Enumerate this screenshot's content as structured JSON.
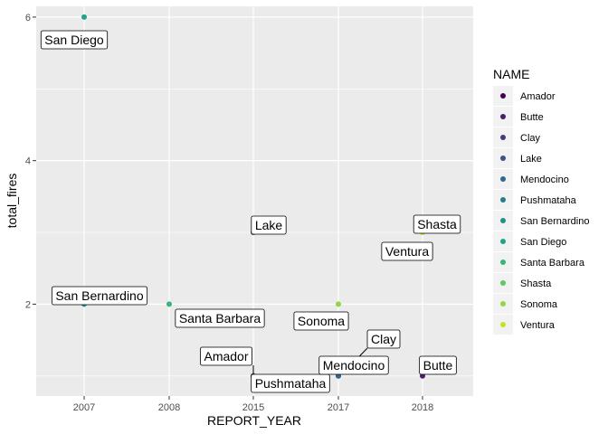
{
  "chart_data": {
    "type": "scatter",
    "title": "",
    "xlabel": "REPORT_YEAR",
    "ylabel": "total_fires",
    "x_ticks": [
      2007,
      2008,
      2015,
      2017,
      2018
    ],
    "y_ticks": [
      2,
      4,
      6
    ],
    "ylim": [
      0.72,
      6.15
    ],
    "grid": true,
    "legend": {
      "title": "NAME",
      "placement": "right",
      "entries": [
        {
          "name": "Amador",
          "color": "#440154"
        },
        {
          "name": "Butte",
          "color": "#481F70"
        },
        {
          "name": "Clay",
          "color": "#443983"
        },
        {
          "name": "Lake",
          "color": "#3B528B"
        },
        {
          "name": "Mendocino",
          "color": "#31688E"
        },
        {
          "name": "Pushmataha",
          "color": "#287C8E"
        },
        {
          "name": "San Bernardino",
          "color": "#21918C"
        },
        {
          "name": "San Diego",
          "color": "#20A486"
        },
        {
          "name": "Santa Barbara",
          "color": "#35B779"
        },
        {
          "name": "Shasta",
          "color": "#5EC962"
        },
        {
          "name": "Sonoma",
          "color": "#90D743"
        },
        {
          "name": "Ventura",
          "color": "#C8E020"
        }
      ]
    },
    "points": [
      {
        "name": "San Diego",
        "year": 2007,
        "total_fires": 6,
        "color": "#20A486"
      },
      {
        "name": "San Bernardino",
        "year": 2007,
        "total_fires": 2,
        "color": "#21918C"
      },
      {
        "name": "Santa Barbara",
        "year": 2008,
        "total_fires": 2,
        "color": "#35B779"
      },
      {
        "name": "Lake",
        "year": 2015,
        "total_fires": 3,
        "color": "#3B528B"
      },
      {
        "name": "Amador",
        "year": 2015,
        "total_fires": 1,
        "color": "#440154"
      },
      {
        "name": "Pushmataha",
        "year": 2015,
        "total_fires": 1,
        "color": "#287C8E"
      },
      {
        "name": "Sonoma",
        "year": 2017,
        "total_fires": 2,
        "color": "#90D743"
      },
      {
        "name": "Clay",
        "year": 2017,
        "total_fires": 1,
        "color": "#443983"
      },
      {
        "name": "Mendocino",
        "year": 2017,
        "total_fires": 1,
        "color": "#31688E"
      },
      {
        "name": "Shasta",
        "year": 2018,
        "total_fires": 3,
        "color": "#5EC962"
      },
      {
        "name": "Ventura",
        "year": 2018,
        "total_fires": 3,
        "color": "#C8E020"
      },
      {
        "name": "Butte",
        "year": 2018,
        "total_fires": 1,
        "color": "#481F70"
      }
    ]
  }
}
